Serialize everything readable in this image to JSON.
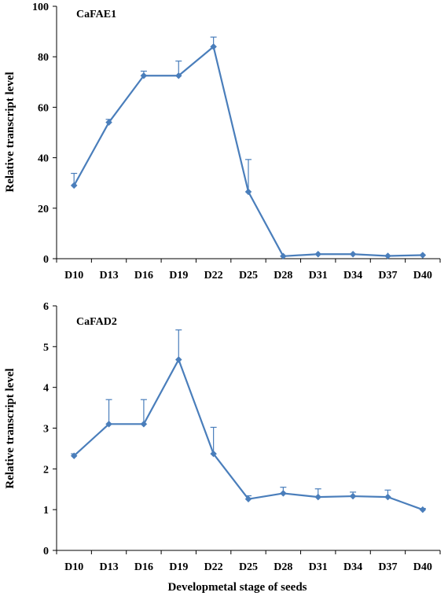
{
  "xlabel": "Developmetal stage of seeds",
  "colors": {
    "series": "#4a7ebb",
    "axis": "#000000"
  },
  "chart_data": [
    {
      "type": "line",
      "title": "CaFAE1",
      "ylabel": "Relative transcript level",
      "xlabel": "",
      "ylim": [
        0,
        100
      ],
      "yticks": [
        0,
        20,
        40,
        60,
        80,
        100
      ],
      "categories": [
        "D10",
        "D13",
        "D16",
        "D19",
        "D22",
        "D25",
        "D28",
        "D31",
        "D34",
        "D37",
        "D40"
      ],
      "values": [
        29,
        54,
        72.5,
        72.5,
        84,
        26.5,
        1,
        1.8,
        1.8,
        1.1,
        1.4
      ],
      "error_upper": [
        4.8,
        1.2,
        1.8,
        5.8,
        3.8,
        12.8,
        0,
        0,
        0,
        0,
        0
      ],
      "grid": false,
      "legend": "none"
    },
    {
      "type": "line",
      "title": "CaFAD2",
      "ylabel": "Relative transcript level",
      "xlabel": "Developmetal stage of seeds",
      "ylim": [
        0,
        6
      ],
      "yticks": [
        0,
        1,
        2,
        3,
        4,
        5,
        6
      ],
      "categories": [
        "D10",
        "D13",
        "D16",
        "D19",
        "D22",
        "D25",
        "D28",
        "D31",
        "D34",
        "D37",
        "D40"
      ],
      "values": [
        2.32,
        3.1,
        3.1,
        4.68,
        2.37,
        1.26,
        1.4,
        1.31,
        1.33,
        1.31,
        1.0
      ],
      "error_upper": [
        0.05,
        0.6,
        0.6,
        0.73,
        0.65,
        0.08,
        0.15,
        0.2,
        0.1,
        0.17,
        0.03
      ],
      "grid": false,
      "legend": "none"
    }
  ]
}
